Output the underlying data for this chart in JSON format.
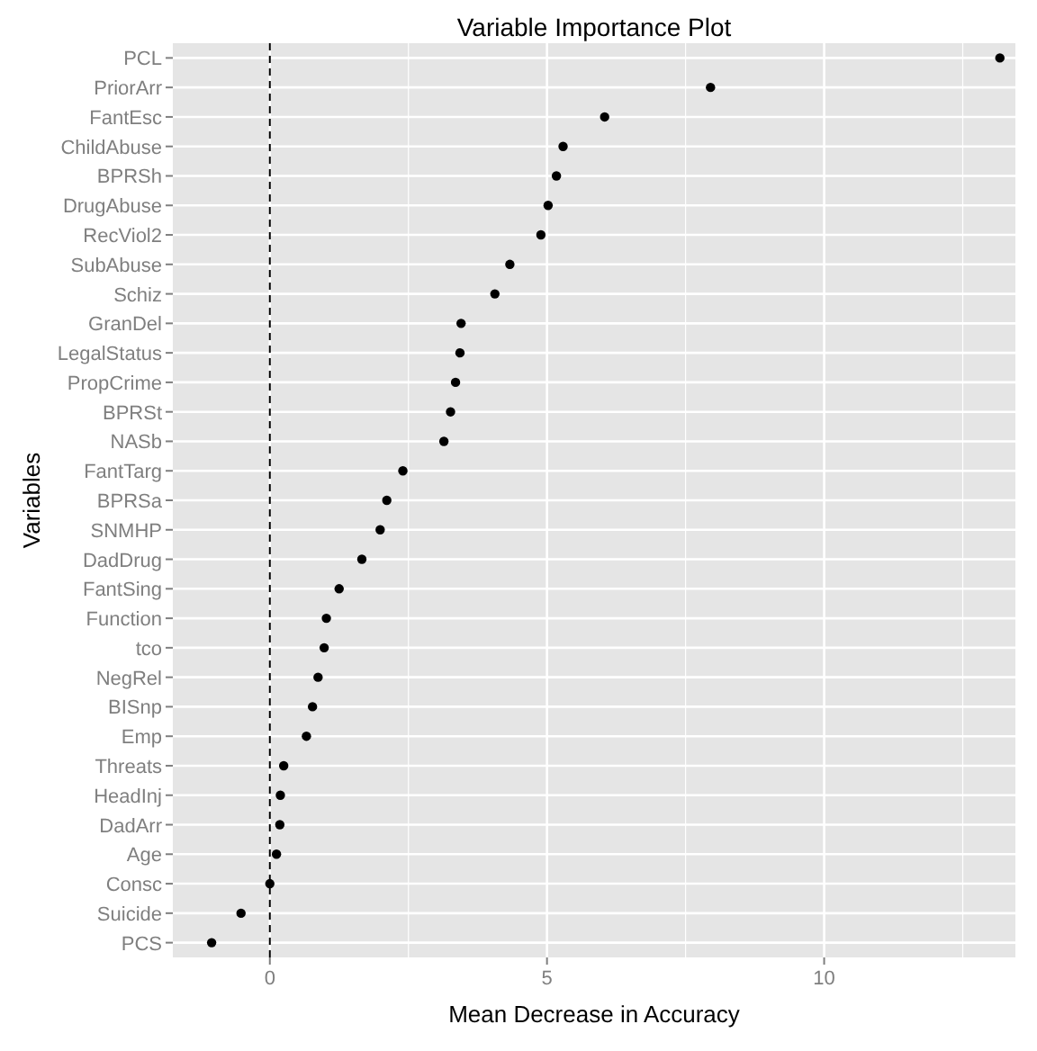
{
  "chart_data": {
    "type": "scatter",
    "orientation": "horizontal",
    "title": "Variable Importance Plot",
    "xlabel": "Mean Decrease in Accuracy",
    "ylabel": "Variables",
    "categories": [
      "PCL",
      "PriorArr",
      "FantEsc",
      "ChildAbuse",
      "BPRSh",
      "DrugAbuse",
      "RecViol2",
      "SubAbuse",
      "Schiz",
      "GranDel",
      "LegalStatus",
      "PropCrime",
      "BPRSt",
      "NASb",
      "FantTarg",
      "BPRSa",
      "SNMHP",
      "DadDrug",
      "FantSing",
      "Function",
      "tco",
      "NegRel",
      "BISnp",
      "Emp",
      "Threats",
      "HeadInj",
      "DadArr",
      "Age",
      "Consc",
      "Suicide",
      "PCS"
    ],
    "values": [
      13.17,
      7.95,
      6.04,
      5.29,
      5.17,
      5.02,
      4.89,
      4.33,
      4.06,
      3.45,
      3.43,
      3.35,
      3.26,
      3.14,
      2.4,
      2.11,
      1.99,
      1.66,
      1.25,
      1.02,
      0.98,
      0.87,
      0.77,
      0.66,
      0.25,
      0.19,
      0.18,
      0.12,
      0.0,
      -0.52,
      -1.05
    ],
    "color": "#000000",
    "marker": "circle",
    "xlim": [
      -1.75,
      13.45
    ],
    "xticks": [
      0,
      {
        "value": 2.5,
        "label": null
      },
      5,
      {
        "value": 7.5,
        "label": null
      },
      10,
      {
        "value": 12.5,
        "label": null
      }
    ],
    "grid": true,
    "ref_lines": [
      {
        "axis": "x",
        "value": 0,
        "line_style": "dashed",
        "color": "#000000"
      }
    ]
  }
}
